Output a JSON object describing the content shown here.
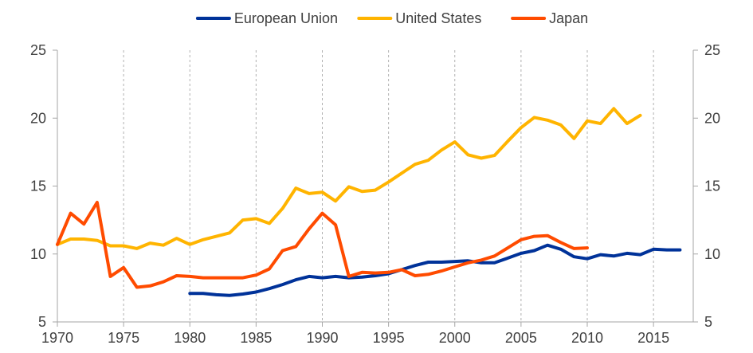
{
  "chart_data": {
    "type": "line",
    "title": "",
    "xlabel": "",
    "ylabel": "",
    "xlim": [
      1970,
      2018
    ],
    "ylim": [
      5,
      25
    ],
    "x_ticks": [
      1970,
      1975,
      1980,
      1985,
      1990,
      1995,
      2000,
      2005,
      2010,
      2015
    ],
    "y_ticks": [
      5,
      10,
      15,
      20,
      25
    ],
    "y_axes": "left and right (mirrored)",
    "grid": "vertical dashed gridlines",
    "legend": "top-center",
    "series": [
      {
        "name": "European Union",
        "color": "#003299",
        "points": [
          [
            1980,
            7.1
          ],
          [
            1981,
            7.1
          ],
          [
            1982,
            7.0
          ],
          [
            1983,
            6.95
          ],
          [
            1984,
            7.05
          ],
          [
            1985,
            7.2
          ],
          [
            1986,
            7.45
          ],
          [
            1987,
            7.75
          ],
          [
            1988,
            8.1
          ],
          [
            1989,
            8.35
          ],
          [
            1990,
            8.25
          ],
          [
            1991,
            8.35
          ],
          [
            1992,
            8.25
          ],
          [
            1993,
            8.3
          ],
          [
            1994,
            8.4
          ],
          [
            1995,
            8.55
          ],
          [
            1996,
            8.85
          ],
          [
            1997,
            9.15
          ],
          [
            1998,
            9.4
          ],
          [
            1999,
            9.4
          ],
          [
            2000,
            9.45
          ],
          [
            2001,
            9.5
          ],
          [
            2002,
            9.35
          ],
          [
            2003,
            9.35
          ],
          [
            2004,
            9.7
          ],
          [
            2005,
            10.05
          ],
          [
            2006,
            10.25
          ],
          [
            2007,
            10.65
          ],
          [
            2008,
            10.35
          ],
          [
            2009,
            9.8
          ],
          [
            2010,
            9.65
          ],
          [
            2011,
            9.95
          ],
          [
            2012,
            9.85
          ],
          [
            2013,
            10.05
          ],
          [
            2014,
            9.95
          ],
          [
            2015,
            10.35
          ],
          [
            2016,
            10.3
          ],
          [
            2017,
            10.3
          ]
        ]
      },
      {
        "name": "United States",
        "color": "#FFB400",
        "points": [
          [
            1970,
            10.7
          ],
          [
            1971,
            11.1
          ],
          [
            1972,
            11.1
          ],
          [
            1973,
            11.0
          ],
          [
            1974,
            10.6
          ],
          [
            1975,
            10.6
          ],
          [
            1976,
            10.4
          ],
          [
            1977,
            10.8
          ],
          [
            1978,
            10.65
          ],
          [
            1979,
            11.15
          ],
          [
            1980,
            10.7
          ],
          [
            1981,
            11.05
          ],
          [
            1982,
            11.3
          ],
          [
            1983,
            11.55
          ],
          [
            1984,
            12.5
          ],
          [
            1985,
            12.6
          ],
          [
            1986,
            12.25
          ],
          [
            1987,
            13.35
          ],
          [
            1988,
            14.85
          ],
          [
            1989,
            14.45
          ],
          [
            1990,
            14.55
          ],
          [
            1991,
            13.9
          ],
          [
            1992,
            14.95
          ],
          [
            1993,
            14.6
          ],
          [
            1994,
            14.7
          ],
          [
            1995,
            15.3
          ],
          [
            1996,
            15.95
          ],
          [
            1997,
            16.6
          ],
          [
            1998,
            16.9
          ],
          [
            1999,
            17.65
          ],
          [
            2000,
            18.25
          ],
          [
            2001,
            17.3
          ],
          [
            2002,
            17.05
          ],
          [
            2003,
            17.25
          ],
          [
            2004,
            18.3
          ],
          [
            2005,
            19.3
          ],
          [
            2006,
            20.05
          ],
          [
            2007,
            19.85
          ],
          [
            2008,
            19.5
          ],
          [
            2009,
            18.5
          ],
          [
            2010,
            19.8
          ],
          [
            2011,
            19.6
          ],
          [
            2012,
            20.7
          ],
          [
            2013,
            19.6
          ],
          [
            2014,
            20.2
          ]
        ]
      },
      {
        "name": "Japan",
        "color": "#FF4B00",
        "points": [
          [
            1970,
            10.7
          ],
          [
            1971,
            13.0
          ],
          [
            1972,
            12.2
          ],
          [
            1973,
            13.8
          ],
          [
            1974,
            8.35
          ],
          [
            1975,
            9.0
          ],
          [
            1976,
            7.55
          ],
          [
            1977,
            7.65
          ],
          [
            1978,
            7.95
          ],
          [
            1979,
            8.4
          ],
          [
            1980,
            8.35
          ],
          [
            1981,
            8.25
          ],
          [
            1982,
            8.25
          ],
          [
            1983,
            8.25
          ],
          [
            1984,
            8.25
          ],
          [
            1985,
            8.45
          ],
          [
            1986,
            8.9
          ],
          [
            1987,
            10.25
          ],
          [
            1988,
            10.55
          ],
          [
            1989,
            11.85
          ],
          [
            1990,
            13.0
          ],
          [
            1991,
            12.15
          ],
          [
            1992,
            8.35
          ],
          [
            1993,
            8.65
          ],
          [
            1994,
            8.6
          ],
          [
            1995,
            8.65
          ],
          [
            1996,
            8.85
          ],
          [
            1997,
            8.4
          ],
          [
            1998,
            8.5
          ],
          [
            1999,
            8.75
          ],
          [
            2000,
            9.05
          ],
          [
            2001,
            9.35
          ],
          [
            2002,
            9.55
          ],
          [
            2003,
            9.85
          ],
          [
            2004,
            10.45
          ],
          [
            2005,
            11.05
          ],
          [
            2006,
            11.3
          ],
          [
            2007,
            11.35
          ],
          [
            2008,
            10.85
          ],
          [
            2009,
            10.4
          ],
          [
            2010,
            10.45
          ]
        ]
      }
    ]
  }
}
